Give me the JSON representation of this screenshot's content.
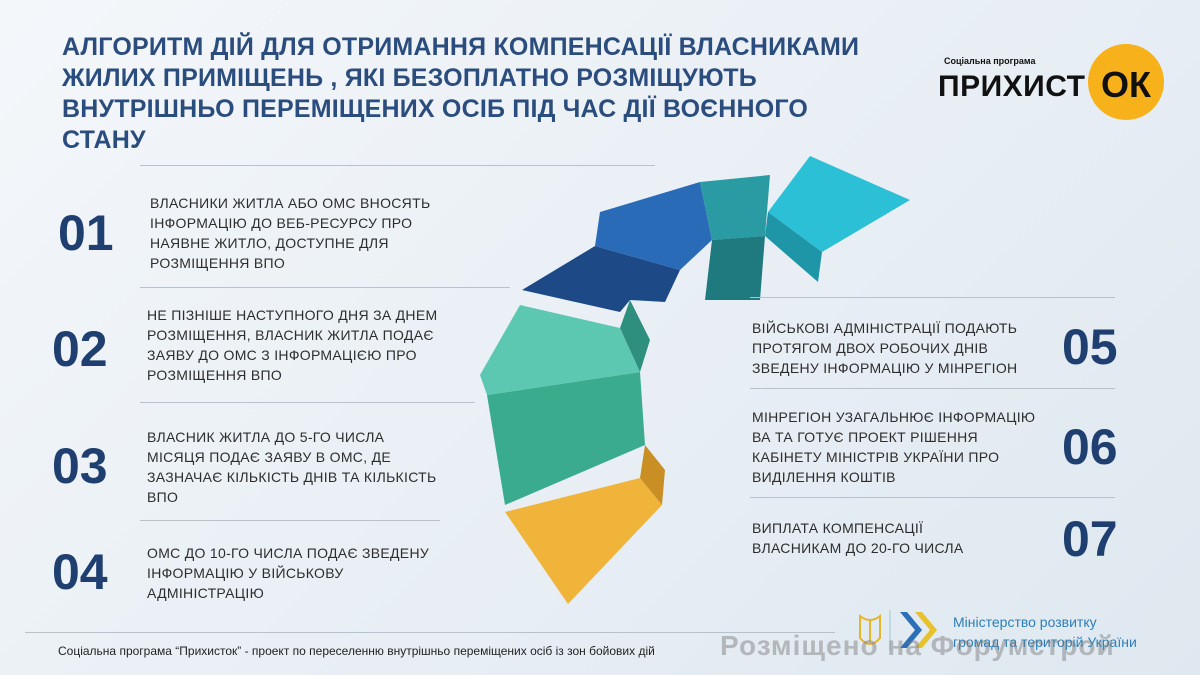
{
  "title": "Алгоритм дій для отримання компенсації власниками жилих приміщень , які безоплатно розміщують внутрішньо переміщених осіб під час дії воєнного стану",
  "logo": {
    "small": "Соціальна програма",
    "main": "ПРИХИСТ",
    "ok": "ОК",
    "color": "#f7b21b"
  },
  "steps": [
    {
      "num": "01",
      "text": "Власники житла або ОМС вносять інформацію до веб-ресурсу про наявне житло, доступне для розміщення ВПО"
    },
    {
      "num": "02",
      "text": "Не пізніше наступного дня за днем розміщення, власник житла подає заяву до ОМС з інформацією про розміщення ВПО"
    },
    {
      "num": "03",
      "text": "Власник житла до 5-го числа місяця подає заяву в ОМС, де зазначає кількість днів та кількість ВПО"
    },
    {
      "num": "04",
      "text": "ОМС до 10-го числа подає зведену інформацію у військову адміністрацію"
    },
    {
      "num": "05",
      "text": "Військові адміністрації подають протягом двох робочих днів зведену інформацію у Мінрегіон"
    },
    {
      "num": "06",
      "text": "Мінрегіон узагальнює інформацію ВА та готує проект рішення Кабінету міністрів України про виділення коштів"
    },
    {
      "num": "07",
      "text": "Виплата компенсації власникам до 20-го числа"
    }
  ],
  "footer": "Соціальна програма “Прихисток” - проект по переселенню внутрішньо переміщених осіб із зон бойових дій",
  "ministry": {
    "line1": "Міністерство розвитку",
    "line2": "громад та територій України"
  },
  "watermark": "Розміщено на Форумстрой",
  "colors": {
    "title": "#2b4d7d",
    "yellow": "#f0b43a",
    "green": "#3bab8e",
    "mint": "#5cc8b2",
    "navy": "#1d4a86",
    "blue": "#2a6bb8",
    "teal": "#2b9ba3",
    "cyan": "#2cc0d6"
  }
}
